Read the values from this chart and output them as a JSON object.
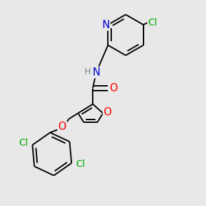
{
  "background_color": "#e8e8e8",
  "bond_color": "#000000",
  "atom_colors": {
    "N": "#0000cd",
    "O": "#ff0000",
    "Cl": "#00aa00",
    "H": "#708090",
    "C": "#000000"
  },
  "font_size": 10,
  "lw": 1.4
}
